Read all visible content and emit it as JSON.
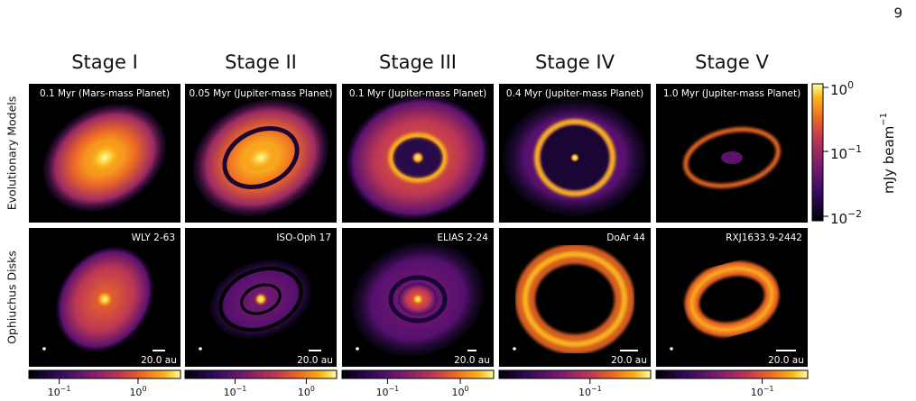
{
  "page_number": "9",
  "row_labels": [
    "Evolutionary Models",
    "Ophiuchus Disks"
  ],
  "columns": [
    {
      "stage": "Stage I",
      "model_label": "0.1 Myr (Mars-mass Planet)",
      "disk_name": "WLY 2-63",
      "scale_bar": "20.0 au",
      "colorbar_ticks": [
        {
          "base": "10",
          "exp": "−1"
        },
        {
          "base": "10",
          "exp": "0"
        }
      ]
    },
    {
      "stage": "Stage II",
      "model_label": "0.05 Myr (Jupiter-mass Planet)",
      "disk_name": "ISO-Oph 17",
      "scale_bar": "20.0 au",
      "colorbar_ticks": [
        {
          "base": "10",
          "exp": "−1"
        },
        {
          "base": "10",
          "exp": "0"
        }
      ]
    },
    {
      "stage": "Stage III",
      "model_label": "0.1 Myr (Jupiter-mass Planet)",
      "disk_name": "ELIAS 2-24",
      "scale_bar": "20.0 au",
      "colorbar_ticks": [
        {
          "base": "10",
          "exp": "−1"
        },
        {
          "base": "10",
          "exp": "0"
        }
      ]
    },
    {
      "stage": "Stage IV",
      "model_label": "0.4 Myr (Jupiter-mass Planet)",
      "disk_name": "DoAr 44",
      "scale_bar": "20.0 au",
      "colorbar_ticks": [
        {
          "base": "10",
          "exp": "−1"
        }
      ]
    },
    {
      "stage": "Stage V",
      "model_label": "1.0 Myr (Jupiter-mass Planet)",
      "disk_name": "RXJ1633.9-2442",
      "scale_bar": "20.0 au",
      "colorbar_ticks": [
        {
          "base": "10",
          "exp": "−1"
        }
      ]
    }
  ],
  "colorbar": {
    "label": {
      "text": "mJy beam",
      "exp": "−1"
    },
    "ticks": [
      {
        "base": "10",
        "exp": "0"
      },
      {
        "base": "10",
        "exp": "−1"
      },
      {
        "base": "10",
        "exp": "−2"
      }
    ]
  }
}
